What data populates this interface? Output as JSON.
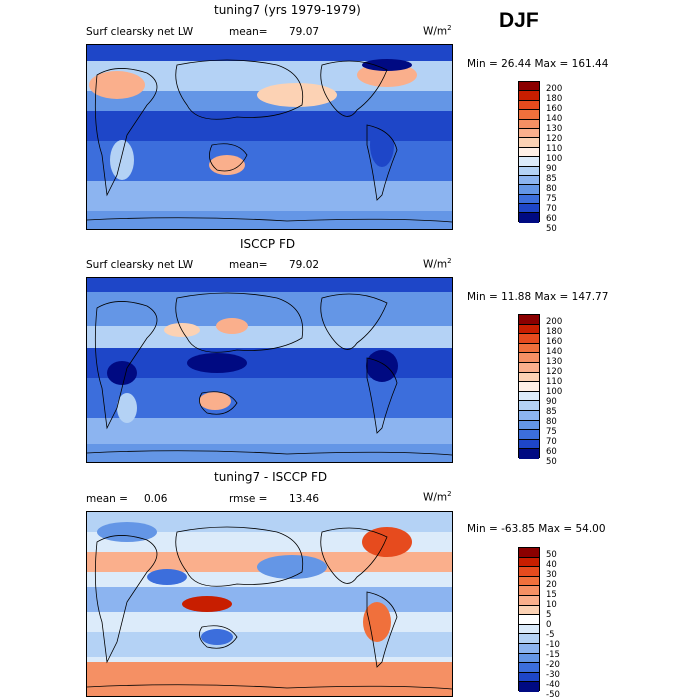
{
  "season_label": "DJF",
  "panels": [
    {
      "title": "tuning7 (yrs 1979-1979)",
      "variable": "Surf clearsky net LW",
      "mean_label": "mean=",
      "mean_value": "79.07",
      "units": "W/m",
      "units_sup": "2",
      "min_max": "Min =  26.44 Max = 161.44",
      "colorbar_labels": [
        "200",
        "180",
        "160",
        "140",
        "130",
        "120",
        "110",
        "100",
        "90",
        "85",
        "80",
        "75",
        "70",
        "60",
        "50"
      ]
    },
    {
      "title": "ISCCP FD",
      "variable": "Surf clearsky net LW",
      "mean_label": "mean=",
      "mean_value": "79.02",
      "units": "W/m",
      "units_sup": "2",
      "min_max": "Min =  11.88 Max = 147.77",
      "colorbar_labels": [
        "200",
        "180",
        "160",
        "140",
        "130",
        "120",
        "110",
        "100",
        "90",
        "85",
        "80",
        "75",
        "70",
        "60",
        "50"
      ]
    },
    {
      "title": "tuning7 - ISCCP FD",
      "mean_label": "mean =",
      "mean_value": "0.06",
      "rmse_label": "rmse =",
      "rmse_value": "13.46",
      "units": "W/m",
      "units_sup": "2",
      "min_max": "Min = -63.85 Max =  54.00",
      "colorbar_labels": [
        "50",
        "40",
        "30",
        "20",
        "15",
        "10",
        "5",
        "0",
        "-5",
        "-10",
        "-15",
        "-20",
        "-30",
        "-40",
        "-50"
      ]
    }
  ],
  "colors": {
    "field_scale": [
      "#8b0000",
      "#c81e00",
      "#e64b1e",
      "#f0703c",
      "#f59064",
      "#faaf8c",
      "#fcd2b4",
      "#fff0e6",
      "#dcebfa",
      "#b4d2f5",
      "#8cb4f0",
      "#6496e6",
      "#3c6edc",
      "#1e46c8",
      "#000a82"
    ],
    "diff_scale": [
      "#8b0000",
      "#c81e00",
      "#e64b1e",
      "#f0703c",
      "#f59064",
      "#faaf8c",
      "#fcd2b4",
      "#ffffff",
      "#dcebfa",
      "#b4d2f5",
      "#8cb4f0",
      "#6496e6",
      "#3c6edc",
      "#1e46c8",
      "#000a82"
    ]
  }
}
